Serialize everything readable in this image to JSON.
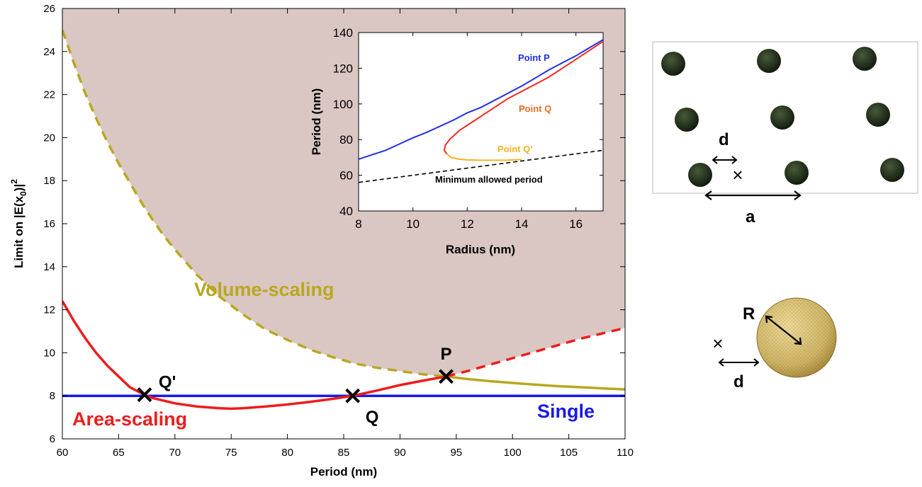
{
  "colors": {
    "allowed_region": "#dac6c3",
    "area_scaling": "#ee1c1c",
    "volume_scaling": "#b8a81e",
    "single": "#1a1ae6",
    "inset_p": "#1f2fe8",
    "inset_q": "#ee2a1c",
    "inset_qprime": "#f5b21e",
    "inset_min": "#000000",
    "particle_dark": "#1f2d1a",
    "particle_gold": "#d8c070"
  },
  "chart_data": [
    {
      "type": "line",
      "xlabel": "Period (nm)",
      "ylabel": "Limit on |E(x0)|²",
      "ylabel_parts": {
        "base": "Limit on |E(x",
        "sub": "0",
        "close": ")|",
        "sup": "2"
      },
      "xlim": [
        60,
        110
      ],
      "ylim": [
        6,
        26
      ],
      "xticks": [
        60,
        65,
        70,
        75,
        80,
        85,
        90,
        95,
        100,
        105,
        110
      ],
      "yticks": [
        6,
        8,
        10,
        12,
        14,
        16,
        18,
        20,
        22,
        24,
        26
      ],
      "grid": false,
      "shaded_region": "above red and yellow curves",
      "series": [
        {
          "name": "Area-scaling",
          "style": "solid then dashed after P",
          "x": [
            60,
            61,
            62,
            63,
            64,
            65,
            66,
            67.3,
            68,
            70,
            72,
            74,
            75,
            76,
            78,
            80,
            82,
            84,
            85.8,
            88,
            90,
            92,
            94.1,
            96,
            98,
            100,
            102,
            104,
            106,
            108,
            110
          ],
          "y": [
            12.4,
            11.5,
            10.7,
            10.0,
            9.4,
            8.9,
            8.4,
            8.05,
            7.9,
            7.65,
            7.5,
            7.42,
            7.4,
            7.42,
            7.5,
            7.6,
            7.72,
            7.86,
            8.0,
            8.25,
            8.5,
            8.7,
            8.9,
            9.15,
            9.45,
            9.75,
            10.05,
            10.35,
            10.65,
            10.9,
            11.15
          ]
        },
        {
          "name": "Volume-scaling",
          "style": "dashed then solid after P",
          "x": [
            60,
            61,
            62,
            63,
            64,
            65,
            66,
            67,
            68,
            69,
            70,
            72,
            74,
            76,
            78,
            80,
            82,
            84,
            86,
            88,
            90,
            92,
            94.1,
            96,
            98,
            100,
            102,
            104,
            106,
            108,
            110
          ],
          "y": [
            25.0,
            23.5,
            22.1,
            20.9,
            19.8,
            18.8,
            17.9,
            17.0,
            16.2,
            15.45,
            14.8,
            13.6,
            12.6,
            11.8,
            11.1,
            10.6,
            10.15,
            9.8,
            9.5,
            9.3,
            9.15,
            9.0,
            8.9,
            8.78,
            8.68,
            8.6,
            8.52,
            8.45,
            8.4,
            8.35,
            8.3
          ]
        },
        {
          "name": "Single",
          "style": "solid",
          "x": [
            60,
            110
          ],
          "y": [
            8,
            8
          ]
        }
      ],
      "points": [
        {
          "label": "Q'",
          "x": 67.3,
          "y": 8.05
        },
        {
          "label": "Q",
          "x": 85.8,
          "y": 8.0
        },
        {
          "label": "P",
          "x": 94.1,
          "y": 8.9
        }
      ],
      "annotations": {
        "volume": "Volume-scaling",
        "area": "Area-scaling",
        "single": "Single"
      }
    },
    {
      "type": "line",
      "xlabel": "Radius (nm)",
      "ylabel": "Period (nm)",
      "xlim": [
        8,
        17
      ],
      "ylim": [
        40,
        140
      ],
      "xticks": [
        8,
        10,
        12,
        14,
        16
      ],
      "yticks": [
        40,
        60,
        80,
        100,
        120,
        140
      ],
      "grid": false,
      "series": [
        {
          "name": "Point P",
          "x": [
            8,
            8.5,
            9,
            9.5,
            10,
            10.5,
            11,
            11.5,
            12,
            12.5,
            13,
            13.5,
            14,
            14.5,
            15,
            15.5,
            16,
            16.5,
            17
          ],
          "y": [
            69,
            71.5,
            74,
            77.5,
            81,
            84,
            87.5,
            91,
            95,
            98,
            102,
            106,
            110,
            114.5,
            119,
            123,
            127,
            131.5,
            136
          ]
        },
        {
          "name": "Point Q",
          "x": [
            11.25,
            11.15,
            11.2,
            11.35,
            11.7,
            12,
            12.5,
            13,
            13.5,
            14,
            14.5,
            15,
            15.5,
            16,
            16.5,
            17
          ],
          "y": [
            72,
            74,
            77,
            80,
            85,
            88,
            93,
            98,
            103,
            107,
            111,
            115,
            120,
            125,
            130,
            135
          ]
        },
        {
          "name": "Point Q'",
          "x": [
            11.25,
            11.4,
            11.7,
            12,
            12.5,
            13,
            13.5,
            14
          ],
          "y": [
            72,
            70,
            69,
            68.6,
            68.4,
            68.4,
            68.5,
            68.8
          ]
        },
        {
          "name": "Minimum allowed period",
          "style": "dashed",
          "x": [
            8,
            17
          ],
          "y": [
            56,
            74
          ]
        }
      ]
    }
  ],
  "schematic_top": {
    "label_d": "d",
    "label_a": "a",
    "cross": "×"
  },
  "schematic_bottom": {
    "label_R": "R",
    "label_d": "d",
    "cross": "×"
  }
}
